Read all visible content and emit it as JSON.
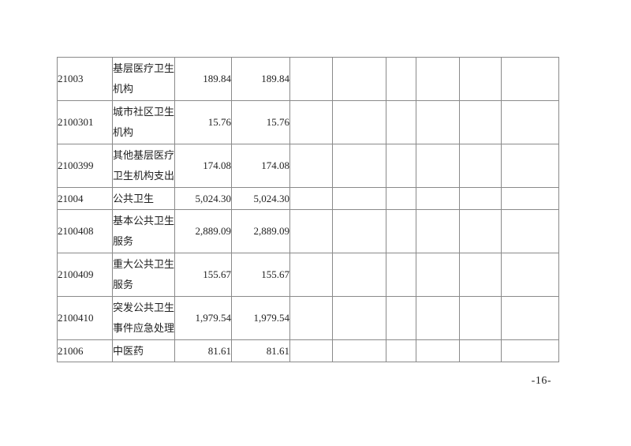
{
  "page": {
    "number_label": "-16-"
  },
  "colors": {
    "background": "#ffffff",
    "border": "#8a8a8a",
    "text": "#1f1f1f"
  },
  "table": {
    "description": "budget-function-table-continuation",
    "visible_header": false,
    "empty_column_count": 6,
    "rows": [
      {
        "code": "21003",
        "name_lines": [
          "基层医疗卫生",
          "机构"
        ],
        "value1": "189.84",
        "value2": "189.84"
      },
      {
        "code": "2100301",
        "name_lines": [
          "城市社区卫生",
          "机构"
        ],
        "value1": "15.76",
        "value2": "15.76"
      },
      {
        "code": "2100399",
        "name_lines": [
          "其他基层医疗",
          "卫生机构支出"
        ],
        "value1": "174.08",
        "value2": "174.08"
      },
      {
        "code": "21004",
        "name_lines": [
          "公共卫生"
        ],
        "value1": "5,024.30",
        "value2": "5,024.30"
      },
      {
        "code": "2100408",
        "name_lines": [
          "基本公共卫生",
          "服务"
        ],
        "value1": "2,889.09",
        "value2": "2,889.09"
      },
      {
        "code": "2100409",
        "name_lines": [
          "重大公共卫生",
          "服务"
        ],
        "value1": "155.67",
        "value2": "155.67"
      },
      {
        "code": "2100410",
        "name_lines": [
          "突发公共卫生",
          "事件应急处理"
        ],
        "value1": "1,979.54",
        "value2": "1,979.54"
      },
      {
        "code": "21006",
        "name_lines": [
          "中医药"
        ],
        "value1": "81.61",
        "value2": "81.61"
      }
    ]
  }
}
